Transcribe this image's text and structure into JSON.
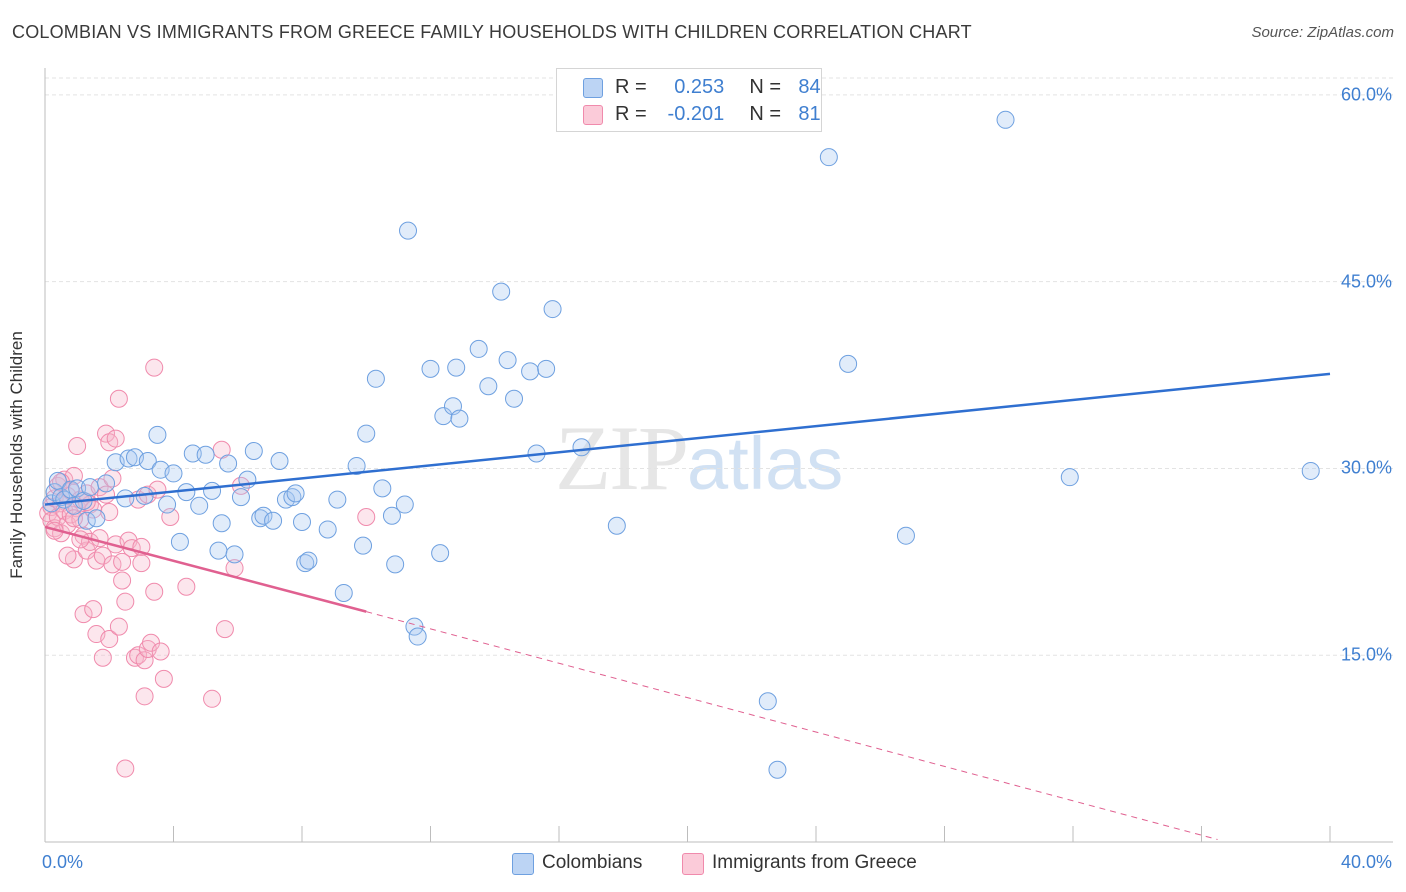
{
  "title": "COLOMBIAN VS IMMIGRANTS FROM GREECE FAMILY HOUSEHOLDS WITH CHILDREN CORRELATION CHART",
  "source": "Source: ZipAtlas.com",
  "watermark": {
    "zip": "ZIP",
    "atlas": "atlas"
  },
  "legend_top": [
    {
      "r_label": "R =",
      "r_value": "0.253",
      "n_label": "N =",
      "n_value": "84"
    },
    {
      "r_label": "R =",
      "r_value": "-0.201",
      "n_label": "N =",
      "n_value": "81"
    }
  ],
  "chart_data": {
    "type": "scatter",
    "title": "COLOMBIAN VS IMMIGRANTS FROM GREECE FAMILY HOUSEHOLDS WITH CHILDREN CORRELATION CHART",
    "xlabel": "",
    "ylabel": "Family Households with Children",
    "xlim": [
      0,
      40
    ],
    "ylim": [
      0,
      62
    ],
    "x_tick_labels": [
      "0.0%",
      "40.0%"
    ],
    "y_ticks": [
      15,
      30,
      45,
      60
    ],
    "y_tick_labels": [
      "15.0%",
      "30.0%",
      "45.0%",
      "60.0%"
    ],
    "grid": true,
    "legend_position": "bottom",
    "colors": {
      "colombians": "#6ea0e0",
      "greece": "#f08aac",
      "colombians_line": "#2f6fd0",
      "greece_line": "#e06090",
      "tick_text": "#3f7fd0"
    },
    "series": [
      {
        "name": "Colombians",
        "r": 0.253,
        "n": 84,
        "trend": {
          "x": [
            0,
            40
          ],
          "y": [
            27.1,
            37.6
          ]
        },
        "points": [
          [
            0.2,
            27.2
          ],
          [
            0.3,
            28.1
          ],
          [
            0.4,
            29.0
          ],
          [
            0.5,
            27.7
          ],
          [
            0.6,
            27.5
          ],
          [
            0.8,
            28.3
          ],
          [
            0.9,
            27.0
          ],
          [
            1.0,
            28.4
          ],
          [
            1.2,
            27.4
          ],
          [
            1.3,
            25.8
          ],
          [
            1.4,
            28.5
          ],
          [
            1.6,
            26.0
          ],
          [
            1.9,
            28.8
          ],
          [
            2.2,
            30.5
          ],
          [
            2.5,
            27.6
          ],
          [
            2.6,
            30.8
          ],
          [
            2.8,
            30.9
          ],
          [
            3.1,
            27.8
          ],
          [
            3.2,
            30.6
          ],
          [
            3.5,
            32.7
          ],
          [
            3.6,
            29.9
          ],
          [
            3.8,
            27.1
          ],
          [
            4.0,
            29.6
          ],
          [
            4.2,
            24.1
          ],
          [
            4.4,
            28.1
          ],
          [
            4.6,
            31.2
          ],
          [
            4.8,
            27.0
          ],
          [
            5.0,
            31.1
          ],
          [
            5.2,
            28.2
          ],
          [
            5.4,
            23.4
          ],
          [
            5.5,
            25.6
          ],
          [
            5.7,
            30.4
          ],
          [
            5.9,
            23.1
          ],
          [
            6.1,
            27.7
          ],
          [
            6.3,
            29.1
          ],
          [
            6.5,
            31.4
          ],
          [
            6.7,
            26.0
          ],
          [
            6.8,
            26.2
          ],
          [
            7.1,
            25.8
          ],
          [
            7.3,
            30.6
          ],
          [
            7.5,
            27.5
          ],
          [
            7.7,
            27.7
          ],
          [
            7.8,
            28.0
          ],
          [
            8.0,
            25.7
          ],
          [
            8.1,
            22.4
          ],
          [
            8.2,
            22.6
          ],
          [
            8.8,
            25.1
          ],
          [
            9.1,
            27.5
          ],
          [
            9.3,
            20.0
          ],
          [
            9.7,
            30.2
          ],
          [
            9.9,
            23.8
          ],
          [
            10.0,
            32.8
          ],
          [
            10.3,
            37.2
          ],
          [
            10.5,
            28.4
          ],
          [
            10.8,
            26.2
          ],
          [
            10.9,
            22.3
          ],
          [
            11.2,
            27.1
          ],
          [
            11.3,
            49.1
          ],
          [
            11.5,
            17.3
          ],
          [
            11.6,
            16.5
          ],
          [
            12.0,
            38.0
          ],
          [
            12.3,
            23.2
          ],
          [
            12.4,
            34.2
          ],
          [
            12.7,
            35.0
          ],
          [
            12.8,
            38.1
          ],
          [
            12.9,
            34.0
          ],
          [
            13.5,
            39.6
          ],
          [
            13.8,
            36.6
          ],
          [
            14.2,
            44.2
          ],
          [
            14.4,
            38.7
          ],
          [
            14.6,
            35.6
          ],
          [
            15.1,
            37.8
          ],
          [
            15.3,
            31.2
          ],
          [
            15.6,
            38.0
          ],
          [
            15.8,
            42.8
          ],
          [
            16.7,
            31.7
          ],
          [
            17.8,
            25.4
          ],
          [
            22.5,
            11.3
          ],
          [
            22.8,
            5.8
          ],
          [
            24.4,
            55.0
          ],
          [
            25.0,
            38.4
          ],
          [
            26.8,
            24.6
          ],
          [
            29.9,
            58.0
          ],
          [
            31.9,
            29.3
          ],
          [
            39.4,
            29.8
          ]
        ]
      },
      {
        "name": "Immigrants from Greece",
        "r": -0.201,
        "n": 81,
        "trend": {
          "x": [
            0,
            10.0
          ],
          "y": [
            25.3,
            18.5
          ]
        },
        "trend_dashed": {
          "x": [
            10.0,
            36.5
          ],
          "y": [
            18.5,
            0.2
          ]
        },
        "points": [
          [
            0.1,
            26.4
          ],
          [
            0.2,
            26.9
          ],
          [
            0.2,
            25.8
          ],
          [
            0.3,
            27.6
          ],
          [
            0.3,
            25.2
          ],
          [
            0.4,
            28.6
          ],
          [
            0.4,
            26.1
          ],
          [
            0.5,
            27.2
          ],
          [
            0.5,
            24.8
          ],
          [
            0.6,
            29.1
          ],
          [
            0.6,
            26.6
          ],
          [
            0.7,
            25.5
          ],
          [
            0.7,
            27.8
          ],
          [
            0.8,
            28.2
          ],
          [
            0.8,
            26.3
          ],
          [
            0.9,
            29.4
          ],
          [
            0.9,
            22.7
          ],
          [
            1.0,
            31.8
          ],
          [
            1.0,
            26.8
          ],
          [
            1.1,
            27.5
          ],
          [
            1.1,
            25.9
          ],
          [
            1.2,
            24.6
          ],
          [
            1.2,
            18.3
          ],
          [
            1.3,
            28.0
          ],
          [
            1.3,
            23.4
          ],
          [
            1.4,
            27.1
          ],
          [
            1.4,
            24.1
          ],
          [
            1.5,
            26.7
          ],
          [
            1.5,
            18.7
          ],
          [
            1.6,
            16.7
          ],
          [
            1.6,
            22.6
          ],
          [
            1.7,
            28.5
          ],
          [
            1.7,
            24.4
          ],
          [
            1.8,
            14.8
          ],
          [
            1.8,
            23.0
          ],
          [
            1.9,
            32.8
          ],
          [
            1.9,
            27.9
          ],
          [
            2.0,
            32.1
          ],
          [
            2.0,
            16.3
          ],
          [
            2.1,
            29.2
          ],
          [
            2.1,
            22.3
          ],
          [
            2.2,
            32.4
          ],
          [
            2.2,
            23.9
          ],
          [
            2.3,
            35.6
          ],
          [
            2.3,
            17.3
          ],
          [
            2.4,
            21.0
          ],
          [
            2.4,
            22.5
          ],
          [
            2.5,
            19.3
          ],
          [
            2.5,
            5.9
          ],
          [
            2.6,
            24.2
          ],
          [
            2.7,
            23.6
          ],
          [
            2.8,
            14.8
          ],
          [
            2.9,
            27.5
          ],
          [
            2.9,
            15.0
          ],
          [
            3.0,
            22.4
          ],
          [
            3.0,
            23.7
          ],
          [
            3.1,
            11.7
          ],
          [
            3.1,
            14.6
          ],
          [
            3.2,
            27.9
          ],
          [
            3.2,
            15.5
          ],
          [
            3.3,
            16.0
          ],
          [
            3.4,
            20.1
          ],
          [
            3.4,
            38.1
          ],
          [
            3.5,
            28.3
          ],
          [
            3.6,
            15.3
          ],
          [
            3.7,
            13.1
          ],
          [
            3.9,
            26.1
          ],
          [
            4.4,
            20.5
          ],
          [
            5.2,
            11.5
          ],
          [
            5.5,
            31.5
          ],
          [
            5.6,
            17.1
          ],
          [
            5.9,
            22.0
          ],
          [
            6.1,
            28.6
          ],
          [
            10.0,
            26.1
          ],
          [
            0.3,
            25.0
          ],
          [
            0.5,
            28.9
          ],
          [
            0.7,
            23.0
          ],
          [
            0.9,
            26.0
          ],
          [
            1.1,
            24.3
          ],
          [
            1.3,
            27.3
          ],
          [
            2.0,
            26.5
          ]
        ]
      }
    ]
  },
  "bottom_legend": [
    "Colombians",
    "Immigrants from Greece"
  ]
}
